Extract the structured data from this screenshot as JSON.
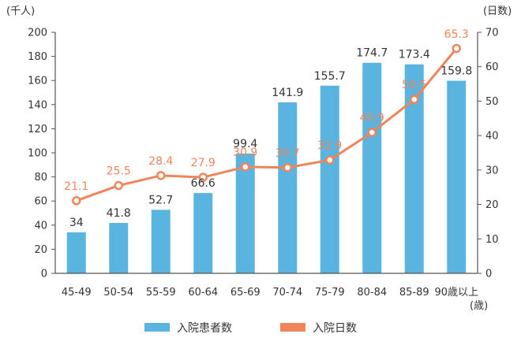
{
  "chart_data": {
    "type": "bar",
    "categories": [
      "45-49",
      "50-54",
      "55-59",
      "60-64",
      "65-69",
      "70-74",
      "75-79",
      "80-84",
      "85-89",
      "90歳以上"
    ],
    "x_unit": "(歳)",
    "left_axis": {
      "unit": "(千人)",
      "ylim": [
        0,
        200
      ],
      "ticks": [
        0,
        20,
        40,
        60,
        80,
        100,
        120,
        140,
        160,
        180,
        200
      ]
    },
    "right_axis": {
      "unit": "(日数)",
      "ylim": [
        0,
        70
      ],
      "ticks": [
        0,
        10,
        20,
        30,
        40,
        50,
        60,
        70
      ]
    },
    "series": [
      {
        "name": "入院患者数",
        "type": "bar",
        "axis": "left",
        "color": "#5ab4e0",
        "values": [
          34,
          41.8,
          52.7,
          66.6,
          99.4,
          141.9,
          155.7,
          174.7,
          173.4,
          159.8
        ]
      },
      {
        "name": "入院日数",
        "type": "line",
        "axis": "right",
        "color": "#f0845a",
        "values": [
          21.1,
          25.5,
          28.4,
          27.9,
          30.9,
          30.7,
          32.9,
          40.9,
          50.5,
          65.3
        ]
      }
    ],
    "grid": false,
    "legend_position": "bottom"
  }
}
